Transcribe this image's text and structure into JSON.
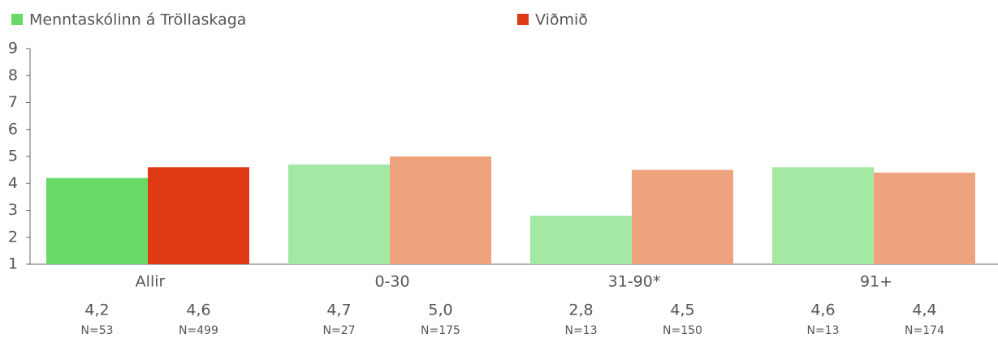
{
  "chart_data": {
    "type": "bar",
    "categories": [
      "Allir",
      "0-30",
      "31-90*",
      "91+"
    ],
    "series": [
      {
        "name": "Menntaskólinn á Tröllaskaga",
        "color": "#66d966",
        "colors": [
          "#66d966",
          "#a3e9a3",
          "#a3e9a3",
          "#a3e9a3"
        ],
        "values": [
          4.2,
          4.7,
          2.8,
          4.6
        ],
        "value_labels": [
          "4,2",
          "4,7",
          "2,8",
          "4,6"
        ],
        "n_labels": [
          "N=53",
          "N=27",
          "N=13",
          "N=13"
        ]
      },
      {
        "name": "Viðmið",
        "color": "#de3a14",
        "colors": [
          "#de3a14",
          "#eea37e",
          "#eea37e",
          "#eea37e"
        ],
        "values": [
          4.6,
          5.0,
          4.5,
          4.4
        ],
        "value_labels": [
          "4,6",
          "5,0",
          "4,5",
          "4,4"
        ],
        "n_labels": [
          "N=499",
          "N=175",
          "N=150",
          "N=174"
        ]
      }
    ],
    "ylim": [
      1,
      9
    ],
    "yticks": [
      1,
      2,
      3,
      4,
      5,
      6,
      7,
      8,
      9
    ],
    "grid": false,
    "legend": "top"
  }
}
